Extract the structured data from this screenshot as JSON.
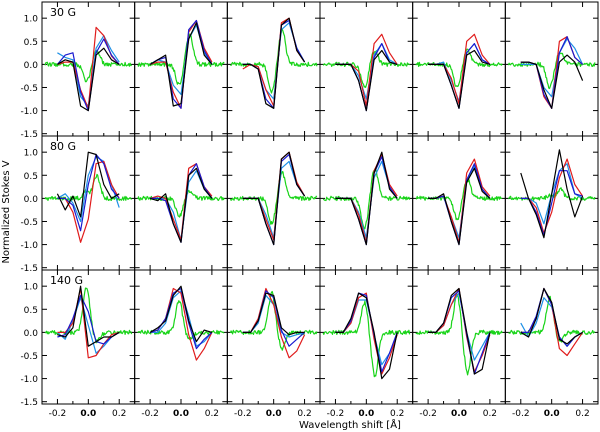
{
  "chart_data": {
    "type": "line",
    "ylabel": "Normalized Stokes V",
    "xlabel": "Wavelength shift [Å]",
    "xlim": [
      -0.3,
      0.3
    ],
    "ylim": [
      -1.55,
      1.35
    ],
    "xticks": [
      -0.2,
      0.0,
      0.2
    ],
    "xtick_labels": [
      "-0.2",
      "0.0",
      "0.2"
    ],
    "yticks": [
      -1.5,
      -1.0,
      -0.5,
      0.0,
      0.5,
      1.0
    ],
    "ytick_labels": [
      "-1.5",
      "-1.0",
      "-0.5",
      "0.0",
      "0.5",
      "1.0"
    ],
    "grid": false,
    "series_colors": {
      "red": "#e01c1c",
      "blue": "#1a1ad0",
      "black": "#000000",
      "cyan": "#1e90e6",
      "green": "#19d419"
    },
    "x_points": [
      -0.2,
      -0.15,
      -0.1,
      -0.05,
      0.0,
      0.05,
      0.1,
      0.15,
      0.2
    ],
    "rows": [
      {
        "label": "30 G",
        "panels": [
          {
            "profile": "negfirst",
            "red": [
              0.0,
              0.05,
              0.05,
              -0.55,
              -0.95,
              0.8,
              0.62,
              0.18,
              0.0
            ],
            "blue": [
              0.0,
              0.2,
              0.25,
              -0.6,
              -1.0,
              0.25,
              0.55,
              0.2,
              0.0
            ],
            "black": [
              0.0,
              0.1,
              0.05,
              -0.9,
              -1.0,
              0.2,
              0.35,
              0.1,
              0.0
            ],
            "cyan": [
              0.25,
              0.15,
              0.1,
              -0.7,
              -0.9,
              0.35,
              0.62,
              0.3,
              0.05
            ],
            "green": [
              -0.38,
              0.3,
              0.28,
              0.0
            ]
          },
          {
            "profile": "negfirst",
            "red": [
              0.0,
              0.05,
              0.05,
              -0.6,
              -0.95,
              0.7,
              0.95,
              0.35,
              0.05
            ],
            "blue": [
              0.0,
              0.1,
              0.15,
              -0.75,
              -0.95,
              0.75,
              0.95,
              0.3,
              0.0
            ],
            "black": [
              0.0,
              0.1,
              0.2,
              -0.9,
              -0.85,
              0.55,
              0.9,
              0.2,
              0.0
            ],
            "cyan": [
              0.0,
              0.1,
              0.05,
              -0.45,
              -0.65,
              0.55,
              0.85,
              0.25,
              0.0
            ],
            "green": [
              -0.45,
              0.65,
              0.3,
              0.0
            ]
          },
          {
            "profile": "negfirst",
            "red": [
              -0.1,
              0.0,
              -0.05,
              -0.55,
              -0.9,
              0.9,
              1.0,
              0.3,
              0.05
            ],
            "blue": [
              0.0,
              0.0,
              -0.1,
              -0.75,
              -0.95,
              0.85,
              0.95,
              0.35,
              0.05
            ],
            "black": [
              0.0,
              0.0,
              -0.1,
              -0.85,
              -0.95,
              0.85,
              1.0,
              0.3,
              0.05
            ],
            "cyan": [
              0.0,
              0.0,
              -0.05,
              -0.55,
              -0.75,
              0.75,
              0.9,
              0.35,
              0.05
            ],
            "green": [
              -0.6,
              0.75,
              0.3,
              0.0
            ]
          },
          {
            "profile": "negfirst",
            "red": [
              0.0,
              0.0,
              0.0,
              -0.15,
              -0.9,
              0.45,
              0.65,
              0.25,
              0.0
            ],
            "blue": [
              0.0,
              0.0,
              0.0,
              -0.35,
              -1.0,
              0.15,
              0.45,
              0.05,
              0.0
            ],
            "black": [
              0.0,
              0.0,
              0.0,
              -0.35,
              -1.0,
              0.1,
              0.3,
              0.05,
              0.0
            ],
            "cyan": [
              0.0,
              0.0,
              0.0,
              -0.25,
              -0.75,
              0.2,
              0.45,
              0.1,
              0.0
            ],
            "green": [
              -0.5,
              0.3,
              0.3,
              0.0
            ]
          },
          {
            "profile": "negfirst",
            "red": [
              0.0,
              0.0,
              0.0,
              -0.3,
              -0.85,
              0.5,
              0.65,
              0.2,
              0.0
            ],
            "blue": [
              0.0,
              0.0,
              0.0,
              -0.45,
              -0.95,
              0.25,
              0.45,
              0.1,
              0.0
            ],
            "black": [
              0.0,
              0.0,
              0.0,
              -0.45,
              -0.95,
              0.2,
              0.3,
              0.05,
              0.0
            ],
            "cyan": [
              0.0,
              0.0,
              0.05,
              -0.35,
              -0.8,
              0.25,
              0.45,
              0.1,
              0.0
            ],
            "green": [
              -0.5,
              0.3,
              0.3,
              0.0
            ]
          },
          {
            "profile": "negfirst",
            "red": [
              0.05,
              0.05,
              0.0,
              -0.7,
              -0.95,
              0.5,
              0.6,
              0.15,
              0.0
            ],
            "blue": [
              0.05,
              0.05,
              0.0,
              -0.65,
              -0.95,
              0.25,
              0.6,
              0.15,
              0.0
            ],
            "black": [
              0.05,
              0.05,
              0.0,
              -0.55,
              -0.95,
              0.05,
              0.2,
              0.05,
              -0.35
            ],
            "cyan": [
              0.0,
              0.0,
              0.0,
              -0.5,
              -0.7,
              0.25,
              0.55,
              0.35,
              0.0
            ],
            "green": [
              -0.5,
              0.25,
              0.3,
              0.0
            ]
          }
        ]
      },
      {
        "label": "80 G",
        "panels": [
          {
            "profile": "negfirst",
            "red": [
              0.0,
              0.0,
              -0.3,
              -0.95,
              -0.45,
              0.75,
              0.8,
              0.3,
              0.0
            ],
            "blue": [
              0.0,
              0.0,
              -0.15,
              -0.7,
              0.3,
              0.95,
              0.75,
              0.2,
              0.0
            ],
            "black": [
              0.1,
              -0.25,
              0.05,
              -0.4,
              1.0,
              0.95,
              0.3,
              0.0,
              0.1
            ],
            "cyan": [
              0.0,
              0.1,
              -0.1,
              -0.5,
              0.5,
              0.9,
              0.8,
              0.3,
              -0.2
            ],
            "green": [
              0.15,
              0.5,
              0.2,
              0.0
            ]
          },
          {
            "profile": "negfirst",
            "red": [
              0.0,
              0.05,
              0.0,
              -0.45,
              -0.9,
              0.65,
              0.75,
              0.25,
              0.05
            ],
            "blue": [
              0.0,
              0.0,
              -0.05,
              -0.55,
              -0.95,
              0.5,
              0.75,
              0.25,
              0.0
            ],
            "black": [
              0.0,
              -0.05,
              0.1,
              -0.55,
              -0.95,
              0.5,
              0.65,
              0.2,
              0.0
            ],
            "cyan": [
              0.0,
              0.0,
              0.0,
              -0.3,
              -0.9,
              0.35,
              0.6,
              0.2,
              0.0
            ],
            "green": [
              -0.4,
              0.15,
              0.15,
              0.0
            ]
          },
          {
            "profile": "negfirst",
            "red": [
              0.0,
              0.0,
              0.0,
              -0.45,
              -0.9,
              0.85,
              1.0,
              0.35,
              0.05
            ],
            "blue": [
              0.0,
              0.0,
              0.0,
              -0.55,
              -1.0,
              0.8,
              0.95,
              0.3,
              0.05
            ],
            "black": [
              0.0,
              0.0,
              0.0,
              -0.55,
              -1.0,
              0.85,
              1.0,
              0.3,
              0.05
            ],
            "cyan": [
              0.0,
              0.0,
              0.0,
              -0.35,
              -0.85,
              0.65,
              0.8,
              0.3,
              0.05
            ],
            "green": [
              -0.55,
              0.55,
              0.2,
              0.0
            ]
          },
          {
            "profile": "negfirst",
            "red": [
              0.0,
              0.0,
              0.0,
              -0.35,
              -0.95,
              0.6,
              0.95,
              0.3,
              0.05
            ],
            "blue": [
              0.0,
              0.0,
              0.0,
              -0.45,
              -1.0,
              0.55,
              0.9,
              0.25,
              0.0
            ],
            "black": [
              0.0,
              0.0,
              0.0,
              -0.45,
              -1.0,
              0.55,
              1.0,
              0.2,
              0.0
            ],
            "cyan": [
              0.0,
              0.0,
              0.0,
              -0.3,
              -0.85,
              0.45,
              0.8,
              0.25,
              0.0
            ],
            "green": [
              -0.65,
              0.65,
              0.2,
              0.0
            ]
          },
          {
            "profile": "negfirst",
            "red": [
              0.0,
              0.0,
              0.05,
              -0.4,
              -0.95,
              0.55,
              0.85,
              0.25,
              0.05
            ],
            "blue": [
              0.0,
              0.0,
              0.05,
              -0.5,
              -1.0,
              0.4,
              0.75,
              0.2,
              0.0
            ],
            "black": [
              0.0,
              0.0,
              0.1,
              -0.5,
              -1.0,
              0.35,
              0.65,
              0.15,
              0.0
            ],
            "cyan": [
              0.0,
              0.0,
              0.05,
              -0.4,
              -0.85,
              0.4,
              0.7,
              0.2,
              0.0
            ],
            "green": [
              -0.45,
              0.4,
              0.2,
              0.0
            ]
          },
          {
            "profile": "negfirst",
            "red": [
              0.0,
              0.0,
              -0.2,
              -0.75,
              -0.3,
              0.45,
              0.85,
              0.3,
              0.05
            ],
            "blue": [
              0.0,
              0.0,
              -0.3,
              -0.8,
              -0.1,
              0.6,
              0.6,
              0.1,
              0.05
            ],
            "black": [
              0.55,
              0.0,
              -0.35,
              -0.85,
              0.1,
              1.05,
              0.2,
              -0.4,
              0.05
            ],
            "cyan": [
              0.0,
              0.0,
              -0.1,
              -0.55,
              0.1,
              0.6,
              0.75,
              0.1,
              0.0
            ],
            "green": [
              0.05,
              0.2,
              0.15,
              0.0
            ]
          }
        ]
      },
      {
        "label": "140 G",
        "panels": [
          {
            "profile": "posfirst",
            "red": [
              0.0,
              0.0,
              0.2,
              0.95,
              -0.55,
              -0.5,
              -0.25,
              -0.05,
              0.0
            ],
            "blue": [
              -0.1,
              -0.05,
              0.3,
              0.8,
              0.45,
              -0.2,
              -0.25,
              -0.1,
              0.0
            ],
            "black": [
              -0.05,
              -0.1,
              0.1,
              1.0,
              -0.3,
              -0.2,
              -0.1,
              -0.1,
              0.0
            ],
            "cyan": [
              0.0,
              -0.15,
              0.25,
              0.75,
              0.15,
              -0.45,
              -0.3,
              -0.1,
              0.0
            ],
            "green": [
              1.0,
              -0.2,
              0.2,
              0.0
            ]
          },
          {
            "profile": "posfirst",
            "red": [
              0.0,
              0.05,
              0.3,
              0.95,
              0.85,
              -0.05,
              -0.6,
              -0.35,
              0.0
            ],
            "blue": [
              0.0,
              0.05,
              0.3,
              0.85,
              0.95,
              0.2,
              -0.35,
              -0.15,
              0.0
            ],
            "black": [
              0.0,
              0.1,
              0.25,
              0.8,
              1.0,
              0.25,
              -0.2,
              0.05,
              0.0
            ],
            "cyan": [
              0.0,
              0.0,
              0.2,
              0.75,
              0.9,
              0.35,
              -0.3,
              -0.2,
              0.0
            ],
            "green": [
              0.7,
              -0.15,
              0.2,
              0.0
            ]
          },
          {
            "profile": "posfirst",
            "red": [
              0.0,
              0.0,
              0.3,
              0.95,
              0.6,
              -0.1,
              -0.55,
              -0.4,
              -0.05
            ],
            "blue": [
              0.0,
              0.0,
              0.25,
              0.9,
              0.75,
              0.05,
              -0.3,
              -0.15,
              0.0
            ],
            "black": [
              0.0,
              0.0,
              0.25,
              0.85,
              0.8,
              0.1,
              -0.05,
              0.0,
              0.0
            ],
            "cyan": [
              0.0,
              0.0,
              0.2,
              0.8,
              0.6,
              0.0,
              -0.1,
              -0.05,
              0.0
            ],
            "green": [
              0.85,
              -0.35,
              0.2,
              0.0
            ]
          },
          {
            "profile": "posfirst",
            "red": [
              0.0,
              0.0,
              0.2,
              0.75,
              0.85,
              -0.15,
              -0.9,
              -0.55,
              -0.05
            ],
            "blue": [
              0.0,
              0.0,
              0.25,
              0.85,
              0.8,
              -0.05,
              -0.85,
              -0.45,
              0.0
            ],
            "black": [
              0.0,
              0.0,
              0.3,
              0.85,
              0.75,
              0.0,
              -1.0,
              -0.8,
              0.0
            ],
            "cyan": [
              0.0,
              0.0,
              0.2,
              0.7,
              0.7,
              -0.05,
              -0.7,
              -0.45,
              0.0
            ],
            "green": [
              0.65,
              -0.95,
              0.2,
              0.0
            ]
          },
          {
            "profile": "posfirst",
            "red": [
              0.0,
              0.0,
              0.15,
              0.6,
              0.95,
              -0.1,
              -0.85,
              -0.5,
              -0.05
            ],
            "blue": [
              0.0,
              0.0,
              0.2,
              0.75,
              0.9,
              -0.05,
              -0.9,
              -0.45,
              0.0
            ],
            "black": [
              0.0,
              0.0,
              0.2,
              0.8,
              0.95,
              0.0,
              -0.9,
              -0.8,
              0.0
            ],
            "cyan": [
              0.0,
              0.0,
              0.15,
              0.6,
              0.85,
              0.0,
              -0.6,
              -0.3,
              0.0
            ],
            "green": [
              0.8,
              -0.9,
              0.2,
              0.0
            ]
          },
          {
            "profile": "posfirst",
            "red": [
              0.0,
              0.0,
              0.3,
              0.95,
              0.6,
              -0.35,
              -0.5,
              -0.25,
              0.0
            ],
            "blue": [
              0.0,
              0.0,
              0.35,
              0.95,
              0.6,
              -0.1,
              -0.3,
              -0.1,
              0.0
            ],
            "black": [
              0.0,
              -0.1,
              0.3,
              0.95,
              0.65,
              -0.15,
              -0.25,
              -0.1,
              0.0
            ],
            "cyan": [
              0.2,
              -0.1,
              0.2,
              0.75,
              0.55,
              -0.1,
              -0.3,
              -0.1,
              0.0
            ],
            "green": [
              0.75,
              -0.2,
              0.2,
              0.0
            ]
          }
        ]
      }
    ]
  }
}
